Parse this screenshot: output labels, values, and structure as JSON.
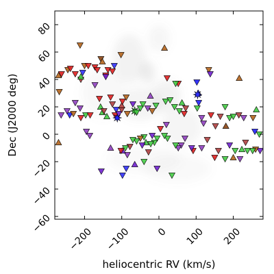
{
  "chart_data": {
    "type": "scatter",
    "xlabel": "heliocentric RV (km/s)",
    "ylabel": "Dec (J2000 deg)",
    "xlim": [
      -280,
      280
    ],
    "ylim": [
      -62,
      90
    ],
    "xticks": [
      -200,
      -100,
      0,
      100,
      200
    ],
    "yticks": [
      -60,
      -40,
      -20,
      0,
      20,
      40,
      60,
      80
    ],
    "xtick_labels": [
      "−200",
      "−100",
      "0",
      "100",
      "200"
    ],
    "ytick_labels": [
      "−60",
      "−40",
      "−20",
      "0",
      "20",
      "40",
      "60",
      "80"
    ],
    "grid": false,
    "marker": "triangle",
    "background_density": [
      {
        "x": -80,
        "y": 55,
        "sx": 45,
        "sy": 18,
        "a": 0.1
      },
      {
        "x": -30,
        "y": 45,
        "sx": 20,
        "sy": 8,
        "a": 0.14
      },
      {
        "x": -50,
        "y": 22,
        "sx": 60,
        "sy": 12,
        "a": 0.09
      },
      {
        "x": 20,
        "y": 28,
        "sx": 40,
        "sy": 12,
        "a": 0.1
      },
      {
        "x": 60,
        "y": 5,
        "sx": 55,
        "sy": 14,
        "a": 0.08
      },
      {
        "x": -150,
        "y": 30,
        "sx": 60,
        "sy": 18,
        "a": 0.06
      },
      {
        "x": -40,
        "y": -18,
        "sx": 100,
        "sy": 10,
        "a": 0.05
      },
      {
        "x": 50,
        "y": -25,
        "sx": 90,
        "sy": 10,
        "a": 0.05
      },
      {
        "x": 0,
        "y": 70,
        "sx": 30,
        "sy": 10,
        "a": 0.07
      }
    ],
    "points": [
      {
        "x": -270,
        "y": 43,
        "c": "#b5651d",
        "d": "up"
      },
      {
        "x": -268,
        "y": 31,
        "c": "#b5651d",
        "d": "down"
      },
      {
        "x": -262,
        "y": 44,
        "c": "#e02020",
        "d": "down"
      },
      {
        "x": -245,
        "y": 47,
        "c": "#b5651d",
        "d": "down"
      },
      {
        "x": -238,
        "y": 48,
        "c": "#e02020",
        "d": "down"
      },
      {
        "x": -225,
        "y": 44,
        "c": "#e02020",
        "d": "down"
      },
      {
        "x": -212,
        "y": 65,
        "c": "#b5651d",
        "d": "down"
      },
      {
        "x": -210,
        "y": 40,
        "c": "#b04040",
        "d": "down"
      },
      {
        "x": -200,
        "y": 50,
        "c": "#b5651d",
        "d": "down"
      },
      {
        "x": -190,
        "y": 50,
        "c": "#e02020",
        "d": "down"
      },
      {
        "x": -172,
        "y": 49,
        "c": "#e02020",
        "d": "down"
      },
      {
        "x": -166,
        "y": 47,
        "c": "#e02020",
        "d": "down"
      },
      {
        "x": -156,
        "y": 55,
        "c": "#8b4513",
        "d": "down"
      },
      {
        "x": -152,
        "y": 53,
        "c": "#b5651d",
        "d": "up"
      },
      {
        "x": -143,
        "y": 43,
        "c": "#e02020",
        "d": "down"
      },
      {
        "x": -143,
        "y": 42,
        "c": "#7020d0",
        "d": "down"
      },
      {
        "x": -137,
        "y": 47,
        "c": "#e02020",
        "d": "down"
      },
      {
        "x": -125,
        "y": 46,
        "c": "#e02020",
        "d": "down"
      },
      {
        "x": -120,
        "y": 50,
        "c": "#3030ff",
        "d": "down"
      },
      {
        "x": -102,
        "y": 58,
        "c": "#b5651d",
        "d": "down"
      },
      {
        "x": -210,
        "y": 42,
        "c": "#44cc44",
        "d": "up"
      },
      {
        "x": -205,
        "y": 45,
        "c": "#3030ff",
        "d": "down"
      },
      {
        "x": -240,
        "y": 14,
        "c": "#2020ff",
        "d": "down"
      },
      {
        "x": -230,
        "y": 15,
        "c": "#b5651d",
        "d": "down"
      },
      {
        "x": -263,
        "y": 14,
        "c": "#9040c0",
        "d": "down"
      },
      {
        "x": -247,
        "y": 17,
        "c": "#9040c0",
        "d": "down"
      },
      {
        "x": -212,
        "y": 19,
        "c": "#9040c0",
        "d": "down"
      },
      {
        "x": -210,
        "y": 12,
        "c": "#e02020",
        "d": "down"
      },
      {
        "x": -197,
        "y": 14,
        "c": "#44cc44",
        "d": "down"
      },
      {
        "x": -185,
        "y": 14,
        "c": "#e02020",
        "d": "down"
      },
      {
        "x": -195,
        "y": 2,
        "c": "#9040c0",
        "d": "down"
      },
      {
        "x": -186,
        "y": -1,
        "c": "#9040c0",
        "d": "down"
      },
      {
        "x": -270,
        "y": -6,
        "c": "#b5651d",
        "d": "up"
      },
      {
        "x": -172,
        "y": 36,
        "c": "#9040c0",
        "d": "down"
      },
      {
        "x": -160,
        "y": 26,
        "c": "#e02020",
        "d": "down"
      },
      {
        "x": -157,
        "y": 20,
        "c": "#44cc44",
        "d": "up"
      },
      {
        "x": -152,
        "y": 16,
        "c": "#44cc44",
        "d": "up"
      },
      {
        "x": -148,
        "y": 17,
        "c": "#b04040",
        "d": "down"
      },
      {
        "x": -140,
        "y": 13,
        "c": "#44cc44",
        "d": "up"
      },
      {
        "x": -130,
        "y": 27,
        "c": "#e02020",
        "d": "down"
      },
      {
        "x": -125,
        "y": 22,
        "c": "#b04040",
        "d": "down"
      },
      {
        "x": -118,
        "y": 14,
        "c": "#e02020",
        "d": "down"
      },
      {
        "x": -115,
        "y": 18,
        "c": "#3030ff",
        "d": "down"
      },
      {
        "x": -112,
        "y": 12,
        "c": "#2020ff",
        "d": "star"
      },
      {
        "x": -108,
        "y": 15,
        "c": "#7020d0",
        "d": "down"
      },
      {
        "x": -100,
        "y": 18,
        "c": "#b04040",
        "d": "down"
      },
      {
        "x": -100,
        "y": 21,
        "c": "#b04040",
        "d": "up"
      },
      {
        "x": -98,
        "y": 24,
        "c": "#e02020",
        "d": "down"
      },
      {
        "x": -85,
        "y": 15,
        "c": "#b5651d",
        "d": "down"
      },
      {
        "x": -88,
        "y": 27,
        "c": "#b5651d",
        "d": "down"
      },
      {
        "x": -70,
        "y": 22,
        "c": "#7020d0",
        "d": "down"
      },
      {
        "x": -65,
        "y": 17,
        "c": "#44cc44",
        "d": "star"
      },
      {
        "x": -60,
        "y": 16,
        "c": "#44cc44",
        "d": "down"
      },
      {
        "x": -50,
        "y": 19,
        "c": "#44cc44",
        "d": "down"
      },
      {
        "x": -43,
        "y": 22,
        "c": "#44cc44",
        "d": "down"
      },
      {
        "x": -30,
        "y": 19,
        "c": "#9040c0",
        "d": "down"
      },
      {
        "x": -23,
        "y": 28,
        "c": "#9040c0",
        "d": "up"
      },
      {
        "x": -18,
        "y": 17,
        "c": "#b5651d",
        "d": "down"
      },
      {
        "x": -8,
        "y": 21,
        "c": "#44cc44",
        "d": "down"
      },
      {
        "x": 18,
        "y": 24,
        "c": "#44cc44",
        "d": "down"
      },
      {
        "x": 30,
        "y": 25,
        "c": "#44cc44",
        "d": "down"
      },
      {
        "x": 42,
        "y": 20,
        "c": "#44cc44",
        "d": "down"
      },
      {
        "x": 55,
        "y": 17,
        "c": "#44cc44",
        "d": "down"
      },
      {
        "x": 68,
        "y": 15,
        "c": "#e02020",
        "d": "down"
      },
      {
        "x": 62,
        "y": 23,
        "c": "#44cc44",
        "d": "up"
      },
      {
        "x": 72,
        "y": 19,
        "c": "#b04040",
        "d": "down"
      },
      {
        "x": 52,
        "y": 37,
        "c": "#e02020",
        "d": "down"
      },
      {
        "x": 45,
        "y": 37,
        "c": "#44cc44",
        "d": "down"
      },
      {
        "x": 22,
        "y": 41,
        "c": "#e02020",
        "d": "down"
      },
      {
        "x": 15,
        "y": 63,
        "c": "#b5651d",
        "d": "up"
      },
      {
        "x": 102,
        "y": 38,
        "c": "#2020ff",
        "d": "down"
      },
      {
        "x": 106,
        "y": 30,
        "c": "#2020ff",
        "d": "up"
      },
      {
        "x": 104,
        "y": 29,
        "c": "#3030ff",
        "d": "star"
      },
      {
        "x": 107,
        "y": 23,
        "c": "#2020ff",
        "d": "down"
      },
      {
        "x": 103,
        "y": 19,
        "c": "#44cc44",
        "d": "down"
      },
      {
        "x": 115,
        "y": 12,
        "c": "#9040c0",
        "d": "down"
      },
      {
        "x": 120,
        "y": 8,
        "c": "#9040c0",
        "d": "down"
      },
      {
        "x": 134,
        "y": 47,
        "c": "#b5651d",
        "d": "down"
      },
      {
        "x": 138,
        "y": 44,
        "c": "#7020d0",
        "d": "down"
      },
      {
        "x": 140,
        "y": 14,
        "c": "#e02020",
        "d": "down"
      },
      {
        "x": 152,
        "y": 6,
        "c": "#b04040",
        "d": "down"
      },
      {
        "x": 165,
        "y": 13,
        "c": "#b04040",
        "d": "down"
      },
      {
        "x": 178,
        "y": 20,
        "c": "#44cc44",
        "d": "down"
      },
      {
        "x": 180,
        "y": 6,
        "c": "#8b4513",
        "d": "up"
      },
      {
        "x": 190,
        "y": 12,
        "c": "#44cc44",
        "d": "down"
      },
      {
        "x": 200,
        "y": 13,
        "c": "#44cc44",
        "d": "down"
      },
      {
        "x": 216,
        "y": 41,
        "c": "#b5651d",
        "d": "up"
      },
      {
        "x": 215,
        "y": 14,
        "c": "#b04040",
        "d": "down"
      },
      {
        "x": 228,
        "y": 12,
        "c": "#9040c0",
        "d": "down"
      },
      {
        "x": 253,
        "y": 12,
        "c": "#b5651d",
        "d": "down"
      },
      {
        "x": 262,
        "y": 18,
        "c": "#44cc44",
        "d": "up"
      },
      {
        "x": 258,
        "y": 2,
        "c": "#2020ff",
        "d": "down"
      },
      {
        "x": 270,
        "y": 0,
        "c": "#44cc44",
        "d": "down"
      },
      {
        "x": 272,
        "y": -12,
        "c": "#7020d0",
        "d": "down"
      },
      {
        "x": 260,
        "y": -11,
        "c": "#b5651d",
        "d": "down"
      },
      {
        "x": 252,
        "y": -12,
        "c": "#44cc44",
        "d": "down"
      },
      {
        "x": 238,
        "y": -12,
        "c": "#44cc44",
        "d": "down"
      },
      {
        "x": 233,
        "y": -6,
        "c": "#b04040",
        "d": "down"
      },
      {
        "x": 223,
        "y": -11,
        "c": "#44cc44",
        "d": "up"
      },
      {
        "x": 218,
        "y": -18,
        "c": "#9040c0",
        "d": "down"
      },
      {
        "x": 205,
        "y": -12,
        "c": "#44cc44",
        "d": "down"
      },
      {
        "x": 200,
        "y": -17,
        "c": "#b5651d",
        "d": "up"
      },
      {
        "x": 178,
        "y": -18,
        "c": "#44cc44",
        "d": "down"
      },
      {
        "x": 190,
        "y": -8,
        "c": "#7020d0",
        "d": "down"
      },
      {
        "x": 160,
        "y": -12,
        "c": "#b04040",
        "d": "down"
      },
      {
        "x": 150,
        "y": -17,
        "c": "#e02020",
        "d": "down"
      },
      {
        "x": 130,
        "y": -4,
        "c": "#b04040",
        "d": "down"
      },
      {
        "x": 115,
        "y": -10,
        "c": "#9040c0",
        "d": "down"
      },
      {
        "x": 92,
        "y": -12,
        "c": "#e02020",
        "d": "down"
      },
      {
        "x": 88,
        "y": -10,
        "c": "#7020d0",
        "d": "down"
      },
      {
        "x": 70,
        "y": -3,
        "c": "#9040c0",
        "d": "down"
      },
      {
        "x": 60,
        "y": -8,
        "c": "#9040c0",
        "d": "down"
      },
      {
        "x": 52,
        "y": -10,
        "c": "#9040c0",
        "d": "down"
      },
      {
        "x": 45,
        "y": -8,
        "c": "#44cc44",
        "d": "down"
      },
      {
        "x": 35,
        "y": -30,
        "c": "#44cc44",
        "d": "down"
      },
      {
        "x": 23,
        "y": -3,
        "c": "#44cc44",
        "d": "down"
      },
      {
        "x": 20,
        "y": 7,
        "c": "#9040c0",
        "d": "down"
      },
      {
        "x": 15,
        "y": -1,
        "c": "#44cc44",
        "d": "down"
      },
      {
        "x": 4,
        "y": 4,
        "c": "#e02020",
        "d": "down"
      },
      {
        "x": -5,
        "y": -3,
        "c": "#44cc44",
        "d": "down"
      },
      {
        "x": -12,
        "y": -6,
        "c": "#44cc44",
        "d": "down"
      },
      {
        "x": -18,
        "y": -1,
        "c": "#7020d0",
        "d": "down"
      },
      {
        "x": -22,
        "y": -7,
        "c": "#44cc44",
        "d": "down"
      },
      {
        "x": -28,
        "y": -13,
        "c": "#b04040",
        "d": "down"
      },
      {
        "x": -35,
        "y": -6,
        "c": "#44cc44",
        "d": "up"
      },
      {
        "x": -40,
        "y": -2,
        "c": "#44cc44",
        "d": "down"
      },
      {
        "x": -45,
        "y": -8,
        "c": "#7020d0",
        "d": "down"
      },
      {
        "x": -50,
        "y": -3,
        "c": "#b5651d",
        "d": "down"
      },
      {
        "x": -60,
        "y": -5,
        "c": "#44cc44",
        "d": "down"
      },
      {
        "x": -70,
        "y": -4,
        "c": "#44cc44",
        "d": "down"
      },
      {
        "x": -78,
        "y": -9,
        "c": "#b04040",
        "d": "down"
      },
      {
        "x": -85,
        "y": -15,
        "c": "#9040c0",
        "d": "down"
      },
      {
        "x": -90,
        "y": -10,
        "c": "#44cc44",
        "d": "down"
      },
      {
        "x": -98,
        "y": -12,
        "c": "#7020d0",
        "d": "up"
      },
      {
        "x": -102,
        "y": -12,
        "c": "#e02020",
        "d": "down"
      },
      {
        "x": -65,
        "y": -22,
        "c": "#7020d0",
        "d": "up"
      },
      {
        "x": -40,
        "y": -20,
        "c": "#44cc44",
        "d": "down"
      },
      {
        "x": -5,
        "y": -25,
        "c": "#7020d0",
        "d": "down"
      },
      {
        "x": -88,
        "y": -25,
        "c": "#3030ff",
        "d": "down"
      },
      {
        "x": -155,
        "y": -27,
        "c": "#7020d0",
        "d": "down"
      },
      {
        "x": -98,
        "y": -30,
        "c": "#3030ff",
        "d": "down"
      },
      {
        "x": -130,
        "y": -10,
        "c": "#9040c0",
        "d": "up"
      },
      {
        "x": -225,
        "y": 23,
        "c": "#9040c0",
        "d": "down"
      }
    ]
  }
}
